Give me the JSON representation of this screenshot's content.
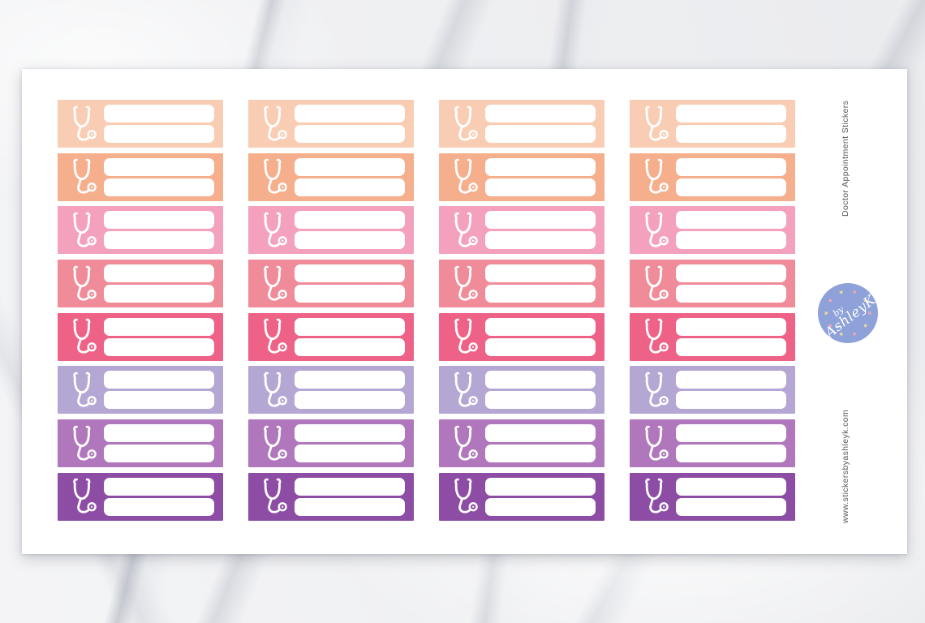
{
  "texts": {
    "product_title": "Doctor Appointment Stickers",
    "website": "www.stickersbyashleyk.com"
  },
  "logo": {
    "by": "by",
    "name": "AshleyK",
    "circle_color": "#8EA1D9",
    "heart_colors": [
      "#F2A9B4",
      "#F3DA96"
    ],
    "hearts_count": 10
  },
  "sticker_sheet": {
    "columns": 4,
    "rows": 8,
    "icon": "stethoscope",
    "writing_lines_per_sticker": 2,
    "row_colors": [
      {
        "name": "light-peach",
        "hex": "#F9CDB3"
      },
      {
        "name": "peach",
        "hex": "#F5AF8C"
      },
      {
        "name": "pink",
        "hex": "#F4A1BE"
      },
      {
        "name": "salmon",
        "hex": "#F08C99"
      },
      {
        "name": "raspberry",
        "hex": "#EE6287"
      },
      {
        "name": "lavender",
        "hex": "#B5A7D3"
      },
      {
        "name": "orchid",
        "hex": "#B077BD"
      },
      {
        "name": "purple",
        "hex": "#8E4DA5"
      }
    ]
  }
}
